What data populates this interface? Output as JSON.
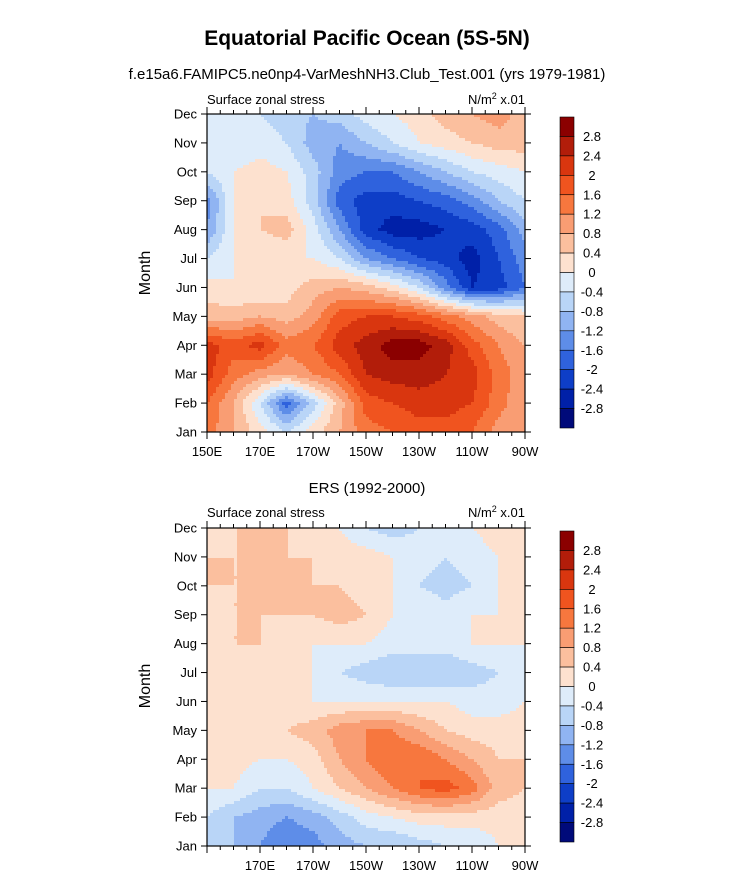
{
  "figure": {
    "title": "Equatorial Pacific Ocean (5S-5N)",
    "subtitle": "f.e15a6.FAMIPC5.ne0np4-VarMeshNH3.Club_Test.001 (yrs 1979-1981)"
  },
  "colorbar": {
    "labels": [
      "2.8",
      "2.4",
      "2",
      "1.6",
      "1.2",
      "0.8",
      "0.4",
      "0",
      "-0.4",
      "-0.8",
      "-1.2",
      "-1.6",
      "-2",
      "-2.4",
      "-2.8"
    ],
    "colors": [
      "#8b0000",
      "#b21d0a",
      "#d9360f",
      "#f0541f",
      "#f7773e",
      "#f99d73",
      "#fbbf9e",
      "#fde1cf",
      "#deecfa",
      "#b9d5f7",
      "#90b4f2",
      "#5e8de8",
      "#2f62dd",
      "#0e3ec7",
      "#0020a8",
      "#000a7a"
    ]
  },
  "chart_data": [
    {
      "type": "heatmap",
      "left_label": "Surface zonal stress",
      "right_label": "N/m",
      "right_label_sup": "2",
      "right_label_suffix": " x.01",
      "ylabel": "Month",
      "xlabel": "",
      "xticklabels": [
        "150E",
        "170E",
        "170W",
        "150W",
        "130W",
        "110W",
        "90W"
      ],
      "yticklabels": [
        "Jan",
        "Feb",
        "Mar",
        "Apr",
        "May",
        "Jun",
        "Jul",
        "Aug",
        "Sep",
        "Oct",
        "Nov",
        "Dec"
      ],
      "xlim": [
        150,
        270
      ],
      "x": [
        150,
        160,
        170,
        180,
        190,
        200,
        210,
        220,
        230,
        240,
        250,
        260,
        270
      ],
      "z": [
        [
          1.4,
          0.8,
          0.2,
          -0.4,
          0.2,
          0.8,
          1.4,
          1.6,
          1.8,
          1.8,
          1.6,
          1.0,
          0.8
        ],
        [
          1.6,
          0.8,
          -0.4,
          -1.8,
          -0.6,
          0.6,
          1.8,
          2.0,
          2.2,
          2.2,
          2.0,
          1.4,
          0.8
        ],
        [
          2.2,
          1.4,
          1.0,
          0.8,
          1.2,
          1.6,
          2.4,
          2.6,
          2.6,
          2.4,
          2.2,
          1.4,
          1.0
        ],
        [
          2.2,
          1.8,
          2.2,
          1.4,
          1.6,
          2.2,
          2.6,
          3.0,
          3.0,
          2.6,
          1.8,
          1.2,
          0.8
        ],
        [
          0.6,
          0.6,
          0.8,
          0.6,
          1.0,
          1.8,
          2.0,
          2.0,
          1.8,
          1.4,
          1.0,
          0.6,
          0.4
        ],
        [
          0.2,
          0.0,
          0.0,
          0.2,
          0.6,
          0.8,
          0.6,
          0.2,
          -0.4,
          -1.4,
          -2.4,
          -2.2,
          -1.6
        ],
        [
          -0.4,
          0.0,
          0.0,
          0.0,
          0.0,
          -0.4,
          -1.2,
          -1.6,
          -2.0,
          -2.2,
          -2.6,
          -2.0,
          -1.4
        ],
        [
          -1.2,
          0.0,
          0.4,
          0.6,
          -0.2,
          -1.2,
          -2.2,
          -2.6,
          -2.6,
          -2.4,
          -2.2,
          -1.8,
          -1.0
        ],
        [
          -1.4,
          0.0,
          0.4,
          0.2,
          -0.6,
          -1.8,
          -2.2,
          -2.2,
          -2.0,
          -1.8,
          -1.4,
          -0.8,
          -0.4
        ],
        [
          -0.4,
          0.0,
          0.2,
          0.0,
          -0.6,
          -1.4,
          -1.6,
          -1.6,
          -1.2,
          -0.8,
          -0.4,
          -0.2,
          0.0
        ],
        [
          0.0,
          -0.4,
          -0.2,
          -0.4,
          -1.0,
          -1.2,
          -0.8,
          -0.4,
          0.0,
          0.2,
          0.4,
          0.6,
          0.6
        ],
        [
          0.0,
          -0.2,
          -0.4,
          -0.6,
          -0.8,
          -0.6,
          -0.2,
          0.0,
          0.2,
          0.6,
          0.8,
          1.0,
          0.6
        ]
      ]
    },
    {
      "type": "heatmap",
      "title": "ERS (1992-2000)",
      "left_label": "Surface zonal stress",
      "right_label": "N/m",
      "right_label_sup": "2",
      "right_label_suffix": " x.01",
      "ylabel": "Month",
      "xlabel": "",
      "xticklabels": [
        "170E",
        "170W",
        "150W",
        "130W",
        "110W",
        "90W"
      ],
      "yticklabels": [
        "Jan",
        "Feb",
        "Mar",
        "Apr",
        "May",
        "Jun",
        "Jul",
        "Aug",
        "Sep",
        "Oct",
        "Nov",
        "Dec"
      ],
      "xlim": [
        150,
        270
      ],
      "x": [
        150,
        160,
        170,
        180,
        190,
        200,
        210,
        220,
        230,
        240,
        250,
        260,
        270
      ],
      "z": [
        [
          -0.4,
          -0.8,
          -1.2,
          -1.6,
          -1.4,
          -1.0,
          -0.8,
          -0.8,
          -0.6,
          -0.4,
          -0.4,
          0.0,
          0.2
        ],
        [
          -0.4,
          -0.8,
          -1.0,
          -1.2,
          -1.0,
          -0.6,
          -0.2,
          0.0,
          0.2,
          0.2,
          0.2,
          0.2,
          0.2
        ],
        [
          0.0,
          0.0,
          -0.4,
          -0.4,
          0.0,
          0.4,
          0.8,
          1.2,
          1.6,
          1.8,
          1.4,
          0.6,
          0.4
        ],
        [
          0.4,
          0.2,
          0.0,
          0.0,
          0.2,
          0.8,
          1.2,
          1.6,
          1.6,
          1.2,
          0.8,
          0.4,
          0.4
        ],
        [
          0.4,
          0.4,
          0.2,
          0.4,
          0.6,
          1.0,
          1.2,
          1.2,
          0.8,
          0.4,
          0.2,
          0.2,
          0.2
        ],
        [
          0.4,
          0.2,
          0.2,
          0.2,
          0.0,
          0.0,
          0.0,
          0.0,
          0.0,
          0.0,
          -0.2,
          -0.2,
          0.0
        ],
        [
          0.2,
          0.2,
          0.2,
          0.0,
          0.0,
          -0.4,
          -0.6,
          -0.8,
          -0.8,
          -0.8,
          -0.6,
          -0.4,
          0.0
        ],
        [
          0.2,
          0.4,
          0.4,
          0.2,
          0.0,
          0.0,
          0.0,
          -0.2,
          -0.2,
          -0.2,
          0.0,
          0.0,
          0.0
        ],
        [
          0.2,
          0.4,
          0.4,
          0.4,
          0.4,
          0.6,
          0.4,
          0.0,
          0.0,
          -0.2,
          0.0,
          0.0,
          0.0
        ],
        [
          0.4,
          0.4,
          0.4,
          0.4,
          0.4,
          0.4,
          0.2,
          0.0,
          -0.4,
          -0.6,
          -0.4,
          0.0,
          0.0
        ],
        [
          0.4,
          0.4,
          0.4,
          0.4,
          0.4,
          0.2,
          0.2,
          0.0,
          -0.2,
          -0.4,
          -0.2,
          0.0,
          0.0
        ],
        [
          0.2,
          0.4,
          0.4,
          0.4,
          0.2,
          0.0,
          -0.4,
          -0.6,
          -0.4,
          -0.2,
          0.0,
          0.2,
          0.2
        ]
      ]
    }
  ]
}
